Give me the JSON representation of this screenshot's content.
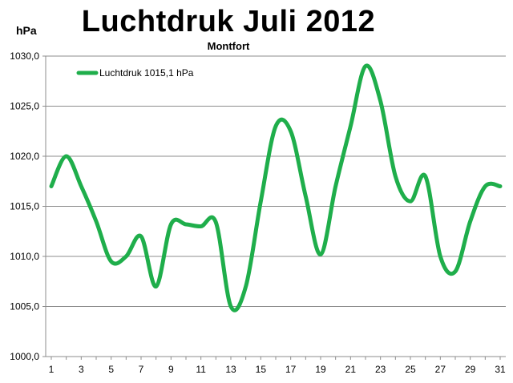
{
  "chart_data": {
    "type": "line",
    "title": "Luchtdruk Juli 2012",
    "subtitle": "Montfort",
    "ylabel": "hPa",
    "xlabel": "",
    "ylim": [
      1000,
      1030
    ],
    "y_ticks": [
      "1000,0",
      "1005,0",
      "1010,0",
      "1015,0",
      "1020,0",
      "1025,0",
      "1030,0"
    ],
    "x_ticks": [
      "1",
      "3",
      "5",
      "7",
      "9",
      "11",
      "13",
      "15",
      "17",
      "19",
      "21",
      "23",
      "25",
      "27",
      "29",
      "31"
    ],
    "grid": "horizontal",
    "legend_position": "top-left",
    "series": [
      {
        "name": "Luchtdruk 1015,1 hPa",
        "color": "#1fae4b",
        "x": [
          1,
          2,
          3,
          4,
          5,
          6,
          7,
          8,
          9,
          10,
          11,
          12,
          13,
          14,
          15,
          16,
          17,
          18,
          19,
          20,
          21,
          22,
          23,
          24,
          25,
          26,
          27,
          28,
          29,
          30,
          31
        ],
        "values": [
          1017.0,
          1020.0,
          1017.0,
          1013.5,
          1009.5,
          1010.0,
          1012.0,
          1007.0,
          1013.2,
          1013.2,
          1013.0,
          1013.4,
          1005.0,
          1007.0,
          1015.5,
          1023.0,
          1022.5,
          1016.0,
          1010.2,
          1017.0,
          1023.0,
          1029.0,
          1025.5,
          1018.0,
          1015.5,
          1018.0,
          1010.0,
          1008.5,
          1013.5,
          1017.0,
          1017.0
        ]
      }
    ]
  }
}
